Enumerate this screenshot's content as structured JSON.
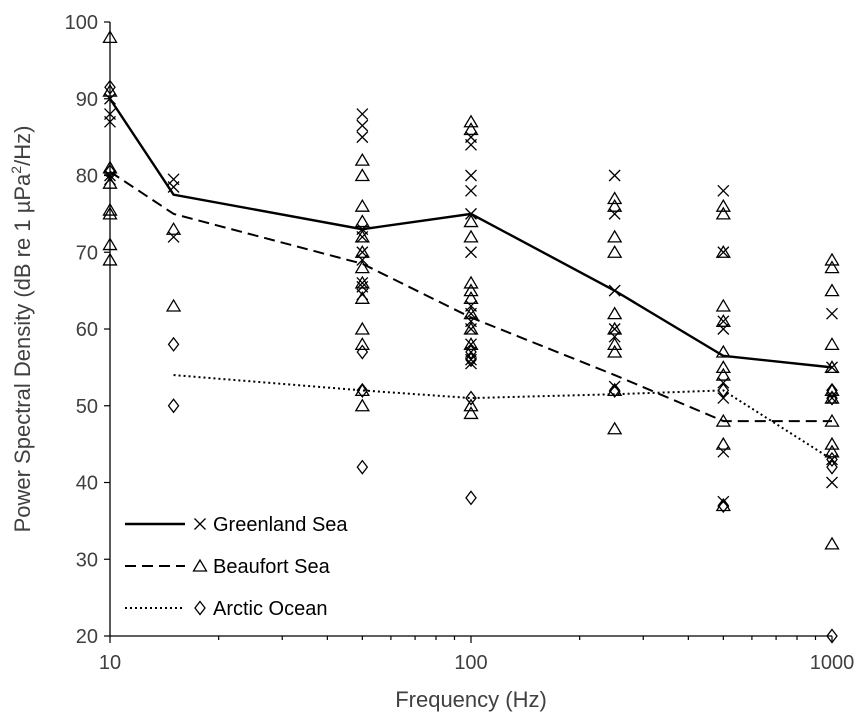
{
  "chart_data": {
    "type": "scatter",
    "xlabel": "Frequency (Hz)",
    "ylabel_parts": [
      "Power Spectral Density (dB re 1 µPa",
      "2",
      "/Hz)"
    ],
    "x_scale": "log",
    "xlim": [
      10,
      1000
    ],
    "ylim": [
      20,
      100
    ],
    "x_ticks": [
      10,
      100,
      1000
    ],
    "x_tick_labels": [
      "10",
      "100",
      "1000"
    ],
    "y_ticks": [
      20,
      30,
      40,
      50,
      60,
      70,
      80,
      90,
      100
    ],
    "y_tick_labels": [
      "20",
      "30",
      "40",
      "50",
      "60",
      "70",
      "80",
      "90",
      "100"
    ],
    "grid": false,
    "legend_position": "bottom-left",
    "series": [
      {
        "name": "Greenland Sea",
        "marker": "x",
        "line_style": "solid",
        "line": [
          [
            10,
            90
          ],
          [
            15,
            77.5
          ],
          [
            50,
            73
          ],
          [
            100,
            75
          ],
          [
            250,
            65
          ],
          [
            500,
            56.5
          ],
          [
            1000,
            55
          ]
        ],
        "points": [
          [
            10,
            90
          ],
          [
            10,
            88
          ],
          [
            10,
            87
          ],
          [
            10,
            80
          ],
          [
            10,
            79.5
          ],
          [
            15,
            79.5
          ],
          [
            15,
            78.5
          ],
          [
            15,
            72
          ],
          [
            50,
            88
          ],
          [
            50,
            86.5
          ],
          [
            50,
            85
          ],
          [
            50,
            73
          ],
          [
            50,
            72
          ],
          [
            50,
            70
          ],
          [
            50,
            69
          ],
          [
            50,
            66
          ],
          [
            50,
            65.5
          ],
          [
            50,
            64.5
          ],
          [
            100,
            85
          ],
          [
            100,
            84
          ],
          [
            100,
            80
          ],
          [
            100,
            78
          ],
          [
            100,
            75
          ],
          [
            100,
            70
          ],
          [
            100,
            63
          ],
          [
            100,
            62
          ],
          [
            100,
            61
          ],
          [
            100,
            60
          ],
          [
            100,
            58
          ],
          [
            100,
            57
          ],
          [
            100,
            56
          ],
          [
            100,
            55.5
          ],
          [
            250,
            80
          ],
          [
            250,
            75
          ],
          [
            250,
            65
          ],
          [
            250,
            60
          ],
          [
            250,
            59
          ],
          [
            250,
            52.5
          ],
          [
            500,
            78
          ],
          [
            500,
            70
          ],
          [
            500,
            61
          ],
          [
            500,
            60
          ],
          [
            500,
            53
          ],
          [
            500,
            51
          ],
          [
            500,
            44
          ],
          [
            500,
            37.5
          ],
          [
            1000,
            62
          ],
          [
            1000,
            55
          ],
          [
            1000,
            51
          ],
          [
            1000,
            43
          ],
          [
            1000,
            40
          ]
        ]
      },
      {
        "name": "Beaufort Sea",
        "marker": "triangle",
        "line_style": "dashed",
        "line": [
          [
            10,
            80.5
          ],
          [
            15,
            75
          ],
          [
            50,
            68.5
          ],
          [
            100,
            61.5
          ],
          [
            250,
            54
          ],
          [
            500,
            48
          ],
          [
            1000,
            48
          ]
        ],
        "points": [
          [
            10,
            98
          ],
          [
            10,
            91
          ],
          [
            10,
            81
          ],
          [
            10,
            79
          ],
          [
            10,
            75.5
          ],
          [
            10,
            75
          ],
          [
            10,
            71
          ],
          [
            10,
            69
          ],
          [
            15,
            73
          ],
          [
            15,
            63
          ],
          [
            50,
            82
          ],
          [
            50,
            80
          ],
          [
            50,
            76
          ],
          [
            50,
            74
          ],
          [
            50,
            72
          ],
          [
            50,
            70
          ],
          [
            50,
            68
          ],
          [
            50,
            66
          ],
          [
            50,
            64
          ],
          [
            50,
            60
          ],
          [
            50,
            58
          ],
          [
            50,
            52
          ],
          [
            50,
            50
          ],
          [
            100,
            87
          ],
          [
            100,
            86
          ],
          [
            100,
            74
          ],
          [
            100,
            72
          ],
          [
            100,
            66
          ],
          [
            100,
            65
          ],
          [
            100,
            64
          ],
          [
            100,
            62
          ],
          [
            100,
            60
          ],
          [
            100,
            58
          ],
          [
            100,
            50
          ],
          [
            100,
            49
          ],
          [
            250,
            77
          ],
          [
            250,
            76
          ],
          [
            250,
            72
          ],
          [
            250,
            70
          ],
          [
            250,
            62
          ],
          [
            250,
            60
          ],
          [
            250,
            58
          ],
          [
            250,
            57
          ],
          [
            250,
            52
          ],
          [
            250,
            47
          ],
          [
            500,
            76
          ],
          [
            500,
            75
          ],
          [
            500,
            70
          ],
          [
            500,
            63
          ],
          [
            500,
            61
          ],
          [
            500,
            57
          ],
          [
            500,
            55
          ],
          [
            500,
            54
          ],
          [
            500,
            48
          ],
          [
            500,
            45
          ],
          [
            500,
            37
          ],
          [
            1000,
            69
          ],
          [
            1000,
            68
          ],
          [
            1000,
            65
          ],
          [
            1000,
            58
          ],
          [
            1000,
            55
          ],
          [
            1000,
            52
          ],
          [
            1000,
            51
          ],
          [
            1000,
            48
          ],
          [
            1000,
            45
          ],
          [
            1000,
            44
          ],
          [
            1000,
            32
          ]
        ]
      },
      {
        "name": "Arctic Ocean",
        "marker": "diamond",
        "line_style": "dotted",
        "line": [
          [
            15,
            54
          ],
          [
            50,
            52
          ],
          [
            100,
            51
          ],
          [
            250,
            51.5
          ],
          [
            500,
            52
          ],
          [
            1000,
            43
          ]
        ],
        "points": [
          [
            10,
            91.5
          ],
          [
            10,
            80.5
          ],
          [
            15,
            58
          ],
          [
            15,
            50
          ],
          [
            50,
            57
          ],
          [
            50,
            52
          ],
          [
            50,
            42
          ],
          [
            100,
            57
          ],
          [
            100,
            56
          ],
          [
            100,
            51
          ],
          [
            100,
            38
          ],
          [
            250,
            52
          ],
          [
            500,
            52
          ],
          [
            500,
            37
          ],
          [
            1000,
            52
          ],
          [
            1000,
            51
          ],
          [
            1000,
            43
          ],
          [
            1000,
            42
          ],
          [
            1000,
            20
          ]
        ]
      }
    ]
  }
}
